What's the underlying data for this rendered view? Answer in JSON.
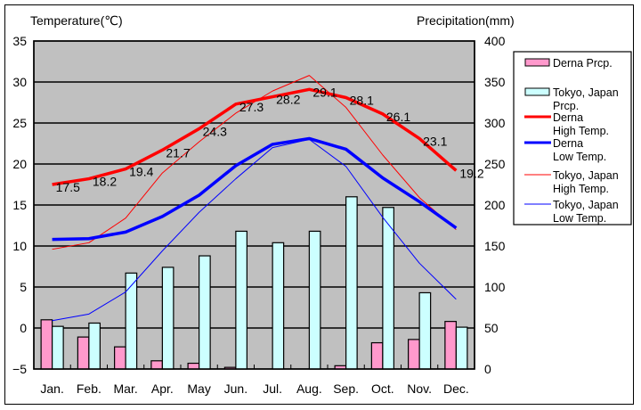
{
  "chart_data": {
    "type": "bar+line",
    "title": "",
    "ylabel_left": "Temperature(℃)",
    "ylabel_right": "Precipitation(mm)",
    "categories": [
      "Jan.",
      "Feb.",
      "Mar.",
      "Apr.",
      "May",
      "Jun.",
      "Jul.",
      "Aug.",
      "Sep.",
      "Oct.",
      "Nov.",
      "Dec."
    ],
    "ylim_left": [
      -5,
      35
    ],
    "yticks_left": [
      -5,
      0,
      5,
      10,
      15,
      20,
      25,
      30,
      35
    ],
    "ylim_right": [
      0,
      400
    ],
    "yticks_right": [
      0,
      50,
      100,
      150,
      200,
      250,
      300,
      350,
      400
    ],
    "grid": true,
    "legend_position": "right",
    "bar_series": [
      {
        "name": "Derna Prcp.",
        "axis": "right",
        "color": "#ff99cc",
        "values": [
          60,
          39,
          27,
          10,
          7,
          2,
          0,
          0,
          4,
          32,
          36,
          58
        ]
      },
      {
        "name": "Tokyo, Japan Prcp.",
        "axis": "right",
        "color": "#ccffff",
        "values": [
          52,
          56,
          117,
          124,
          138,
          168,
          154,
          168,
          210,
          197,
          93,
          51
        ]
      }
    ],
    "line_series": [
      {
        "name": "Derna High Temp.",
        "axis": "left",
        "color": "#ff0000",
        "weight": "thick",
        "labeled": true,
        "values": [
          17.5,
          18.2,
          19.4,
          21.7,
          24.3,
          27.3,
          28.2,
          29.1,
          28.1,
          26.1,
          23.1,
          19.2
        ]
      },
      {
        "name": "Derna Low Temp.",
        "axis": "left",
        "color": "#0000ff",
        "weight": "thick",
        "labeled": false,
        "values": [
          10.8,
          10.9,
          11.7,
          13.6,
          16.2,
          19.8,
          22.4,
          23.1,
          21.8,
          18.3,
          15.4,
          12.2
        ]
      },
      {
        "name": "Tokyo, Japan High Temp.",
        "axis": "left",
        "color": "#ff0000",
        "weight": "thin",
        "labeled": false,
        "values": [
          9.6,
          10.4,
          13.4,
          18.9,
          22.7,
          26.2,
          28.9,
          30.8,
          26.9,
          21.1,
          15.9,
          12.0
        ]
      },
      {
        "name": "Tokyo, Japan Low Temp.",
        "axis": "left",
        "color": "#0000ff",
        "weight": "thin",
        "labeled": false,
        "values": [
          0.9,
          1.7,
          4.4,
          9.4,
          14.1,
          18.2,
          22.0,
          23.0,
          19.7,
          13.5,
          7.9,
          3.5
        ]
      }
    ]
  },
  "legend": {
    "items": [
      {
        "lines": [
          "Derna Prcp."
        ],
        "kind": "bar",
        "color": "#ff99cc"
      },
      {
        "lines": [
          "Tokyo, Japan",
          "Prcp."
        ],
        "kind": "bar",
        "color": "#ccffff"
      },
      {
        "lines": [
          "Derna",
          " High Temp."
        ],
        "kind": "thick-line",
        "color": "#ff0000"
      },
      {
        "lines": [
          "Derna",
          " Low Temp."
        ],
        "kind": "thick-line",
        "color": "#0000ff"
      },
      {
        "lines": [
          "Tokyo, Japan",
          "High Temp."
        ],
        "kind": "thin-line",
        "color": "#ff0000"
      },
      {
        "lines": [
          "Tokyo, Japan",
          "Low Temp."
        ],
        "kind": "thin-line",
        "color": "#0000ff"
      }
    ]
  },
  "colors": {
    "plot_background": "#c0c0c0",
    "gridline": "#000000"
  }
}
